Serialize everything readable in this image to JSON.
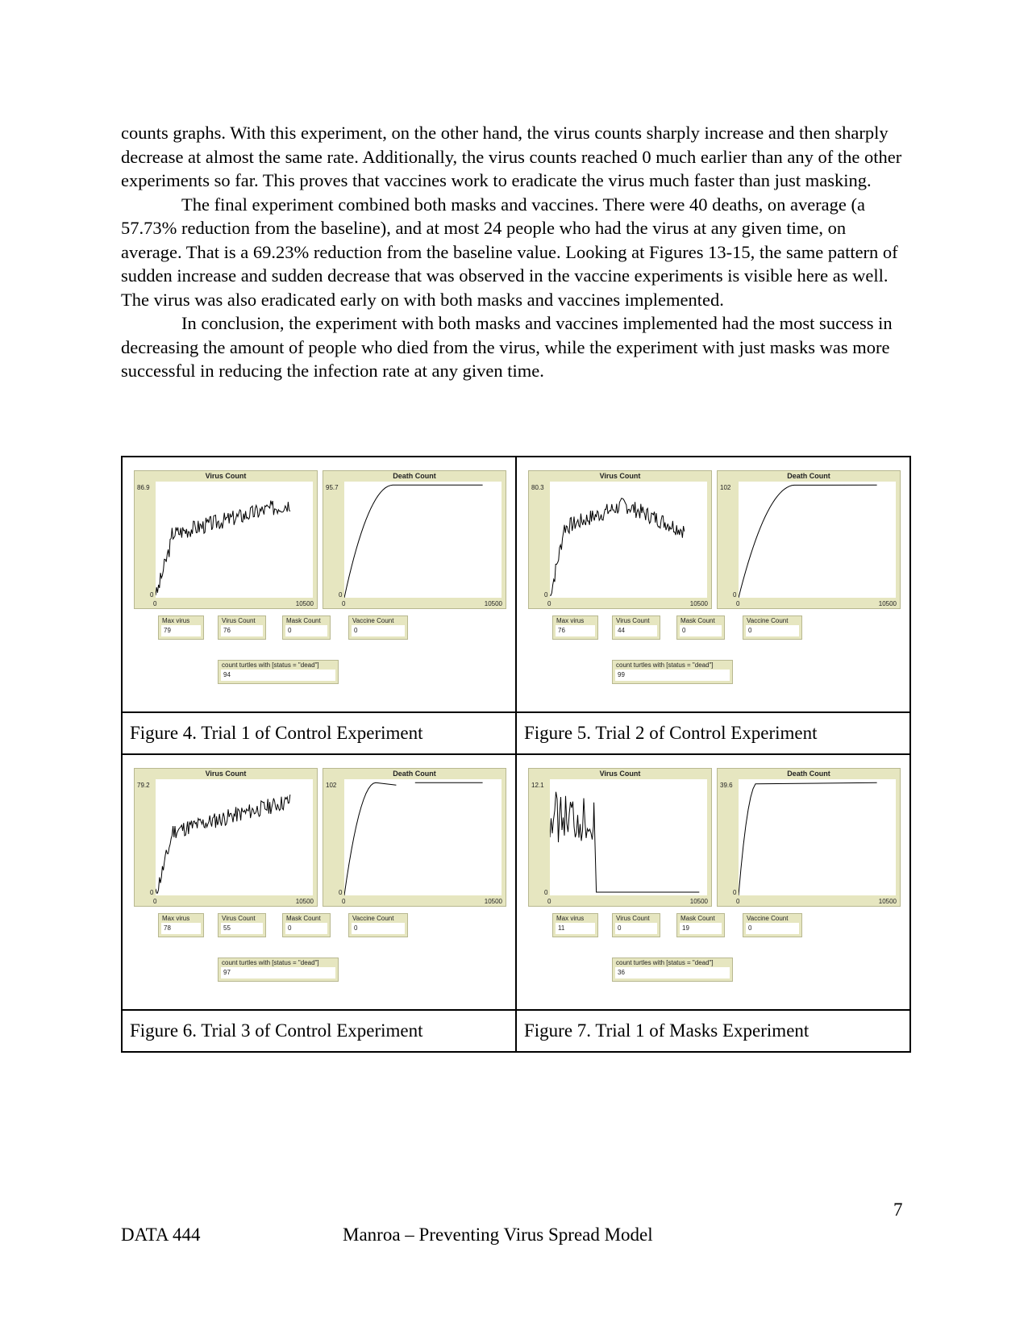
{
  "paragraphs": [
    "counts graphs. With this experiment, on the other hand, the virus counts sharply increase and then sharply decrease at almost the same rate. Additionally, the virus counts reached 0 much earlier than any of the other experiments so far. This proves that vaccines work to eradicate the virus much faster than just masking.",
    "The final experiment combined both masks and vaccines. There were 40 deaths, on average (a 57.73% reduction from the baseline), and at most 24 people who had the virus at any given time, on average. That is a 69.23% reduction from the baseline value. Looking at Figures 13-15, the same pattern of sudden increase and sudden decrease that was observed in the vaccine experiments is visible here as well. The virus was also eradicated early on with both masks and vaccines implemented.",
    "In conclusion, the experiment with both masks and vaccines implemented had the most success in decreasing the amount of people who died from the virus, while the experiment with just masks was more successful in reducing the infection rate at any given time."
  ],
  "figures": [
    {
      "caption": "Figure 4. Trial 1 of Control Experiment",
      "virus_plot": {
        "title": "Virus Count",
        "ymax": "86.9",
        "ymin": "0",
        "xmin": "0",
        "xmax": "10500"
      },
      "death_plot": {
        "title": "Death Count",
        "ymax": "95.7",
        "ymin": "0",
        "xmin": "0",
        "xmax": "10500"
      },
      "monitors": {
        "max_virus_label": "Max virus",
        "max_virus": "79",
        "virus_count_label": "Virus Count",
        "virus_count": "76",
        "mask_count_label": "Mask Count",
        "mask_count": "0",
        "vaccine_count_label": "Vaccine Count",
        "vaccine_count": "0",
        "dead_label": "count turtles with [status = \"dead\"]",
        "dead": "94"
      }
    },
    {
      "caption": "Figure 5. Trial 2 of Control Experiment",
      "virus_plot": {
        "title": "Virus Count",
        "ymax": "80.3",
        "ymin": "0",
        "xmin": "0",
        "xmax": "10500"
      },
      "death_plot": {
        "title": "Death Count",
        "ymax": "102",
        "ymin": "0",
        "xmin": "0",
        "xmax": "10500"
      },
      "monitors": {
        "max_virus_label": "Max virus",
        "max_virus": "76",
        "virus_count_label": "Virus Count",
        "virus_count": "44",
        "mask_count_label": "Mask Count",
        "mask_count": "0",
        "vaccine_count_label": "Vaccine Count",
        "vaccine_count": "0",
        "dead_label": "count turtles with [status = \"dead\"]",
        "dead": "99"
      }
    },
    {
      "caption": "Figure 6. Trial 3 of Control Experiment",
      "virus_plot": {
        "title": "Virus Count",
        "ymax": "79.2",
        "ymin": "0",
        "xmin": "0",
        "xmax": "10500"
      },
      "death_plot": {
        "title": "Death Count",
        "ymax": "102",
        "ymin": "0",
        "xmin": "0",
        "xmax": "10500"
      },
      "monitors": {
        "max_virus_label": "Max virus",
        "max_virus": "78",
        "virus_count_label": "Virus Count",
        "virus_count": "55",
        "mask_count_label": "Mask Count",
        "mask_count": "0",
        "vaccine_count_label": "Vaccine Count",
        "vaccine_count": "0",
        "dead_label": "count turtles with [status = \"dead\"]",
        "dead": "97"
      }
    },
    {
      "caption": "Figure 7. Trial 1 of Masks Experiment",
      "virus_plot": {
        "title": "Virus Count",
        "ymax": "12.1",
        "ymin": "0",
        "xmin": "0",
        "xmax": "10500"
      },
      "death_plot": {
        "title": "Death Count",
        "ymax": "39.6",
        "ymin": "0",
        "xmin": "0",
        "xmax": "10500"
      },
      "monitors": {
        "max_virus_label": "Max virus",
        "max_virus": "11",
        "virus_count_label": "Virus Count",
        "virus_count": "0",
        "mask_count_label": "Mask Count",
        "mask_count": "19",
        "vaccine_count_label": "Vaccine Count",
        "vaccine_count": "0",
        "dead_label": "count turtles with [status = \"dead\"]",
        "dead": "36"
      }
    }
  ],
  "footer": {
    "course": "DATA 444",
    "title": "Manroa – Preventing Virus Spread Model",
    "page": "7"
  }
}
